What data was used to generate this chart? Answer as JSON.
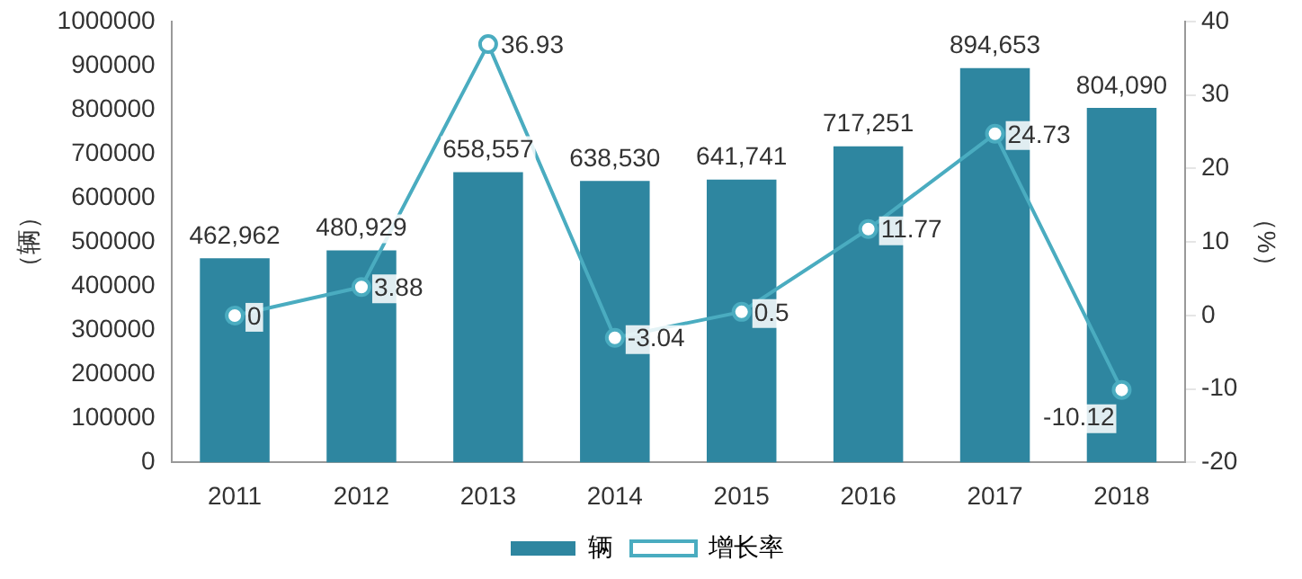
{
  "chart_data": {
    "type": "bar",
    "categories": [
      "2011",
      "2012",
      "2013",
      "2014",
      "2015",
      "2016",
      "2017",
      "2018"
    ],
    "ylabel": "（辆）",
    "y2label": "（%）",
    "series": [
      {
        "name": "辆",
        "color": "#2e86a0",
        "values": [
          462962,
          480929,
          658557,
          638530,
          641741,
          717251,
          894653,
          804090
        ],
        "value_labels": [
          "462,962",
          "480,929",
          "658,557",
          "638,530",
          "641,741",
          "717,251",
          "894,653",
          "804,090"
        ]
      },
      {
        "name": "增长率",
        "type": "line",
        "axis": "y2",
        "color": "#4aacc0",
        "marker": "circle",
        "values": [
          0,
          3.88,
          36.93,
          -3.04,
          0.5,
          11.77,
          24.73,
          -10.12
        ],
        "value_labels": [
          "0",
          "3.88",
          "36.93",
          "-3.04",
          "0.5",
          "11.77",
          "24.73",
          "-10.12"
        ]
      }
    ],
    "ylim": [
      0,
      1000000
    ],
    "yticks": [
      0,
      100000,
      200000,
      300000,
      400000,
      500000,
      600000,
      700000,
      800000,
      900000,
      1000000
    ],
    "y2lim": [
      -20,
      40
    ],
    "y2ticks": [
      -20,
      -10,
      0,
      10,
      20,
      30,
      40
    ],
    "grid": false,
    "legend": "bottom"
  }
}
